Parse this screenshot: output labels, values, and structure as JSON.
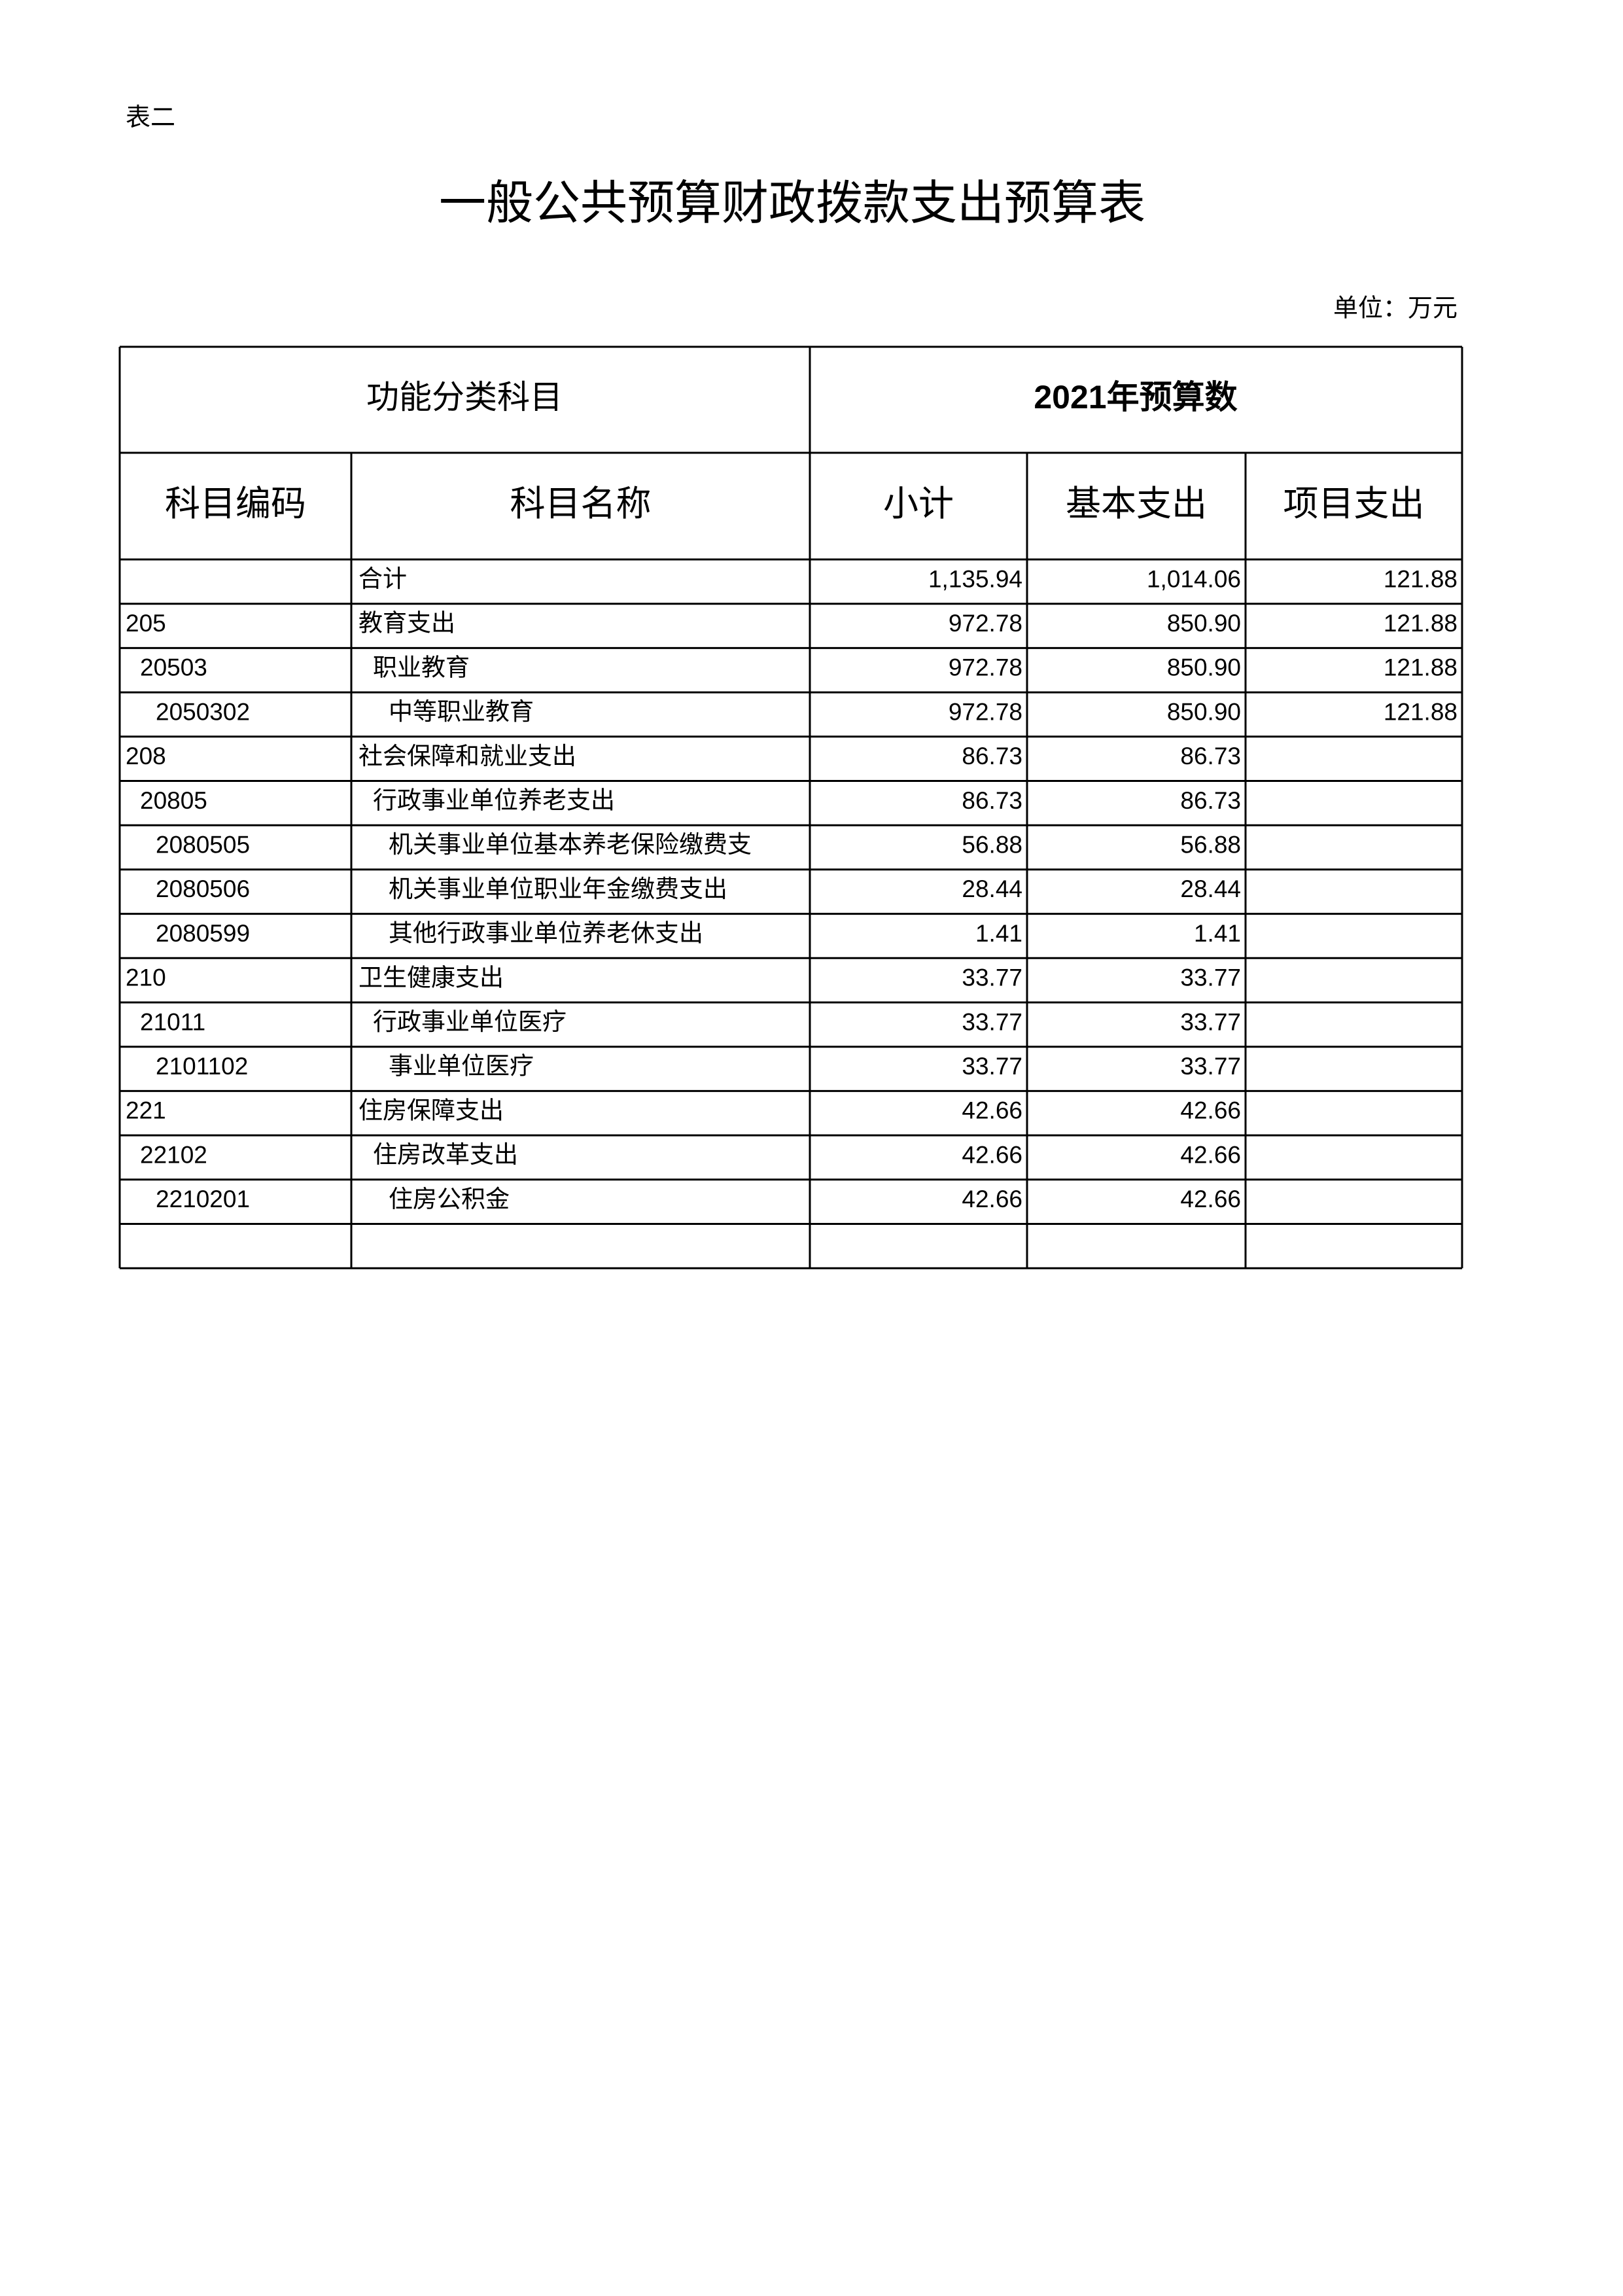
{
  "label": "表二",
  "title": "一般公共预算财政拨款支出预算表",
  "unit": "单位：万元",
  "table": {
    "header": {
      "group_left": "功能分类科目",
      "group_right": "2021年预算数",
      "columns": [
        "科目编码",
        "科目名称",
        "小计",
        "基本支出",
        "项目支出"
      ]
    },
    "rows": [
      {
        "name": "合计",
        "subtotal": "1,135.94",
        "basic": "1,014.06",
        "project": "121.88"
      },
      {
        "code": "205",
        "name": "教育支出",
        "subtotal": "972.78",
        "basic": "850.90",
        "project": "121.88"
      },
      {
        "code": "20503",
        "name": "职业教育",
        "subtotal": "972.78",
        "basic": "850.90",
        "project": "121.88"
      },
      {
        "code": "2050302",
        "name": "中等职业教育",
        "subtotal": "972.78",
        "basic": "850.90",
        "project": "121.88"
      },
      {
        "code": "208",
        "name": "社会保障和就业支出",
        "subtotal": "86.73",
        "basic": "86.73"
      },
      {
        "code": "20805",
        "name": "行政事业单位养老支出",
        "subtotal": "86.73",
        "basic": "86.73"
      },
      {
        "code": "2080505",
        "name": "机关事业单位基本养老保险缴费支",
        "subtotal": "56.88",
        "basic": "56.88"
      },
      {
        "code": "2080506",
        "name": "机关事业单位职业年金缴费支出",
        "subtotal": "28.44",
        "basic": "28.44"
      },
      {
        "code": "2080599",
        "name": "其他行政事业单位养老休支出",
        "subtotal": "1.41",
        "basic": "1.41"
      },
      {
        "code": "210",
        "name": "卫生健康支出",
        "subtotal": "33.77",
        "basic": "33.77"
      },
      {
        "code": "21011",
        "name": "行政事业单位医疗",
        "subtotal": "33.77",
        "basic": "33.77"
      },
      {
        "code": "2101102",
        "name": "事业单位医疗",
        "subtotal": "33.77",
        "basic": "33.77"
      },
      {
        "code": "221",
        "name": "住房保障支出",
        "subtotal": "42.66",
        "basic": "42.66"
      },
      {
        "code": "22102",
        "name": "住房改革支出",
        "subtotal": "42.66",
        "basic": "42.66"
      },
      {
        "code": "2210201",
        "name": "住房公积金",
        "subtotal": "42.66",
        "basic": "42.66"
      }
    ]
  }
}
